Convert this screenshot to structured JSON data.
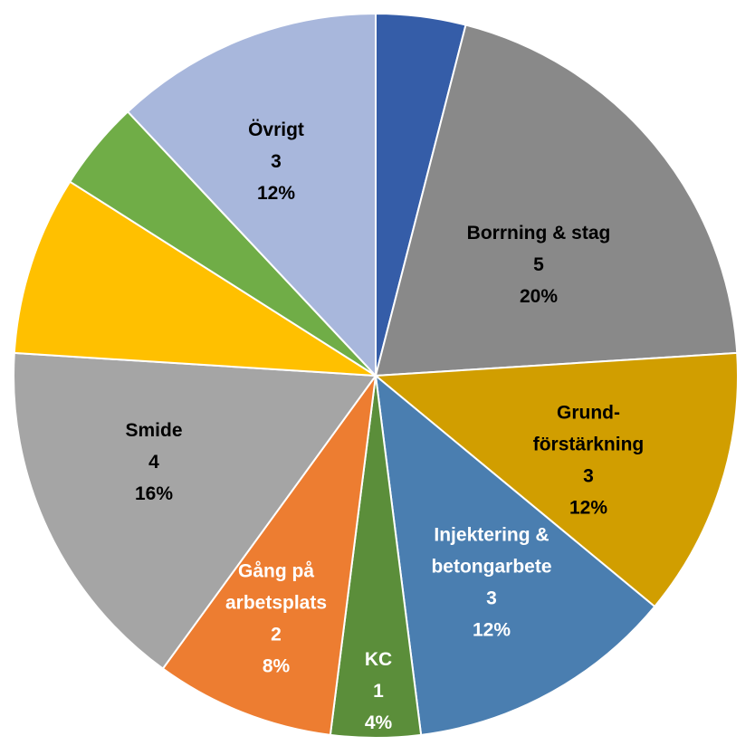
{
  "chart_data": {
    "type": "pie",
    "title": "",
    "slices": [
      {
        "label": "",
        "value": 1,
        "percent": "",
        "color": "#355DA8",
        "text_color": "#000000",
        "show_label": false
      },
      {
        "label": "Borrning & stag",
        "value": 5,
        "percent": "20%",
        "color": "#898989",
        "text_color": "#000000",
        "show_label": true
      },
      {
        "label": "Grund-\nförstärkning",
        "value": 3,
        "percent": "12%",
        "color": "#D19E00",
        "text_color": "#000000",
        "show_label": true
      },
      {
        "label": "Injektering &\nbetongarbete",
        "value": 3,
        "percent": "12%",
        "color": "#4A7EB0",
        "text_color": "#ffffff",
        "show_label": true
      },
      {
        "label": "KC",
        "value": 1,
        "percent": "4%",
        "color": "#5B8E3A",
        "text_color": "#ffffff",
        "show_label": true
      },
      {
        "label": "Gång på\narbetsplats",
        "value": 2,
        "percent": "8%",
        "color": "#ED7D31",
        "text_color": "#ffffff",
        "show_label": true
      },
      {
        "label": "Smide",
        "value": 4,
        "percent": "16%",
        "color": "#A5A5A5",
        "text_color": "#000000",
        "show_label": true
      },
      {
        "label": "",
        "value": 2,
        "percent": "",
        "color": "#FFC000",
        "text_color": "#000000",
        "show_label": false
      },
      {
        "label": "",
        "value": 1,
        "percent": "",
        "color": "#70AD47",
        "text_color": "#000000",
        "show_label": false
      },
      {
        "label": "Övrigt",
        "value": 3,
        "percent": "12%",
        "color": "#A8B7DC",
        "text_color": "#000000",
        "show_label": true
      }
    ]
  }
}
